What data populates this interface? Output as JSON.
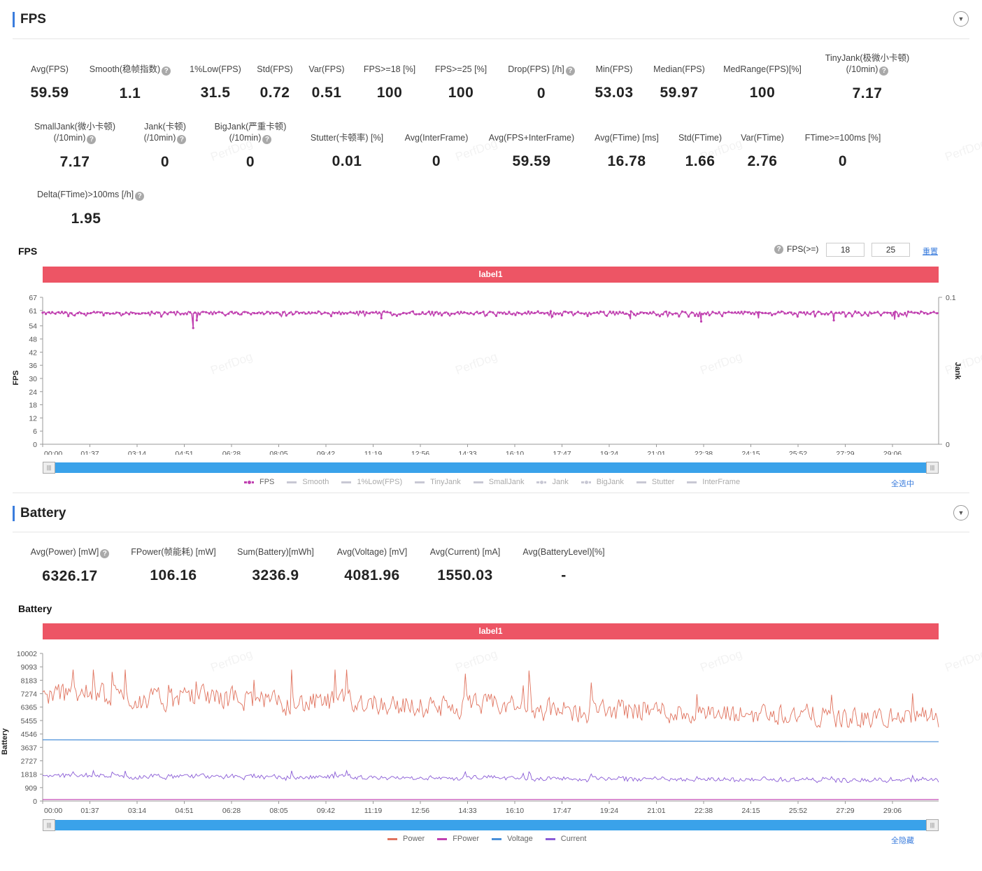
{
  "fps_section": {
    "title": "FPS",
    "metrics_row1": [
      {
        "label": "Avg(FPS)",
        "value": "59.59",
        "help": false
      },
      {
        "label": "Smooth(稳帧指数)",
        "value": "1.1",
        "help": true
      },
      {
        "label": "1%Low(FPS)",
        "value": "31.5",
        "help": false
      },
      {
        "label": "Std(FPS)",
        "value": "0.72",
        "help": false
      },
      {
        "label": "Var(FPS)",
        "value": "0.51",
        "help": false
      },
      {
        "label": "FPS>=18 [%]",
        "value": "100",
        "help": false
      },
      {
        "label": "FPS>=25 [%]",
        "value": "100",
        "help": false
      },
      {
        "label": "Drop(FPS) [/h]",
        "value": "0",
        "help": true
      },
      {
        "label": "Min(FPS)",
        "value": "53.03",
        "help": false
      },
      {
        "label": "Median(FPS)",
        "value": "59.97",
        "help": false
      },
      {
        "label": "MedRange(FPS)[%]",
        "value": "100",
        "help": false
      },
      {
        "label": "TinyJank(极微小卡顿)",
        "label2": "(/10min)",
        "value": "7.17",
        "help": true
      }
    ],
    "metrics_row2": [
      {
        "label": "SmallJank(微小卡顿)",
        "label2": "(/10min)",
        "value": "7.17",
        "help": true
      },
      {
        "label": "Jank(卡顿)",
        "label2": "(/10min)",
        "value": "0",
        "help": true
      },
      {
        "label": "BigJank(严重卡顿)",
        "label2": "(/10min)",
        "value": "0",
        "help": true
      },
      {
        "label": "Stutter(卡顿率) [%]",
        "value": "0.01",
        "help": false
      },
      {
        "label": "Avg(InterFrame)",
        "value": "0",
        "help": false
      },
      {
        "label": "Avg(FPS+InterFrame)",
        "value": "59.59",
        "help": false
      },
      {
        "label": "Avg(FTime) [ms]",
        "value": "16.78",
        "help": false
      },
      {
        "label": "Std(FTime)",
        "value": "1.66",
        "help": false
      },
      {
        "label": "Var(FTime)",
        "value": "2.76",
        "help": false
      },
      {
        "label": "FTime>=100ms [%]",
        "value": "0",
        "help": false
      }
    ],
    "metrics_row3": [
      {
        "label": "Delta(FTime)>100ms [/h]",
        "value": "1.95",
        "help": true
      }
    ]
  },
  "fps_chart_header": {
    "title": "FPS",
    "threshold_label": "FPS(>=)",
    "threshold_1": "18",
    "threshold_2": "25",
    "reset_label": "重置",
    "label_bar": "label1",
    "legend": [
      "FPS",
      "Smooth",
      "1%Low(FPS)",
      "TinyJank",
      "SmallJank",
      "Jank",
      "BigJank",
      "Stutter",
      "InterFrame"
    ],
    "select_all": "全选中",
    "y_title": "FPS",
    "y2_title": "Jank",
    "y2_ticks": [
      "0.1",
      "0"
    ]
  },
  "battery_section": {
    "title": "Battery",
    "metrics": [
      {
        "label": "Avg(Power) [mW]",
        "value": "6326.17",
        "help": true
      },
      {
        "label": "FPower(帧能耗) [mW]",
        "value": "106.16",
        "help": false
      },
      {
        "label": "Sum(Battery)[mWh]",
        "value": "3236.9",
        "help": false
      },
      {
        "label": "Avg(Voltage) [mV]",
        "value": "4081.96",
        "help": false
      },
      {
        "label": "Avg(Current) [mA]",
        "value": "1550.03",
        "help": false
      },
      {
        "label": "Avg(BatteryLevel)[%]",
        "value": "-",
        "help": false
      }
    ]
  },
  "battery_chart_header": {
    "title": "Battery",
    "label_bar": "label1",
    "legend": [
      "Power",
      "FPower",
      "Voltage",
      "Current"
    ],
    "hide_all": "全隐藏",
    "y_title": "Battery"
  },
  "watermark": "PerfDog",
  "colors": {
    "fps": "#c040b0",
    "power": "#e0735e",
    "fpower": "#c040b0",
    "voltage": "#4a90d9",
    "current": "#8a5cd6",
    "label_bar": "#ed5565",
    "accent": "#3b7ddd"
  },
  "chart_data": [
    {
      "type": "line",
      "title": "FPS",
      "ylabel": "FPS",
      "ylim": [
        0,
        67
      ],
      "yticks": [
        0,
        6,
        12,
        18,
        24,
        30,
        36,
        42,
        48,
        54,
        61,
        67
      ],
      "x_ticks": [
        "00:00",
        "01:37",
        "03:14",
        "04:51",
        "06:28",
        "08:05",
        "09:42",
        "11:19",
        "12:56",
        "14:33",
        "16:10",
        "17:47",
        "19:24",
        "21:01",
        "22:38",
        "24:15",
        "25:52",
        "27:29",
        "29:06"
      ],
      "duration_min": 30.3,
      "series": [
        {
          "name": "FPS",
          "mean": 59.59,
          "min": 53.03,
          "dips": [
            [
              0.172,
              56.5
            ],
            [
              0.168,
              53.0
            ],
            [
              0.378,
              57.5
            ],
            [
              0.568,
              57.8
            ],
            [
              0.656,
              57.0
            ],
            [
              0.735,
              56.0
            ],
            [
              0.799,
              57.4
            ],
            [
              0.862,
              57.8
            ],
            [
              0.883,
              56.5
            ],
            [
              0.951,
              56.8
            ]
          ]
        }
      ]
    },
    {
      "type": "line",
      "title": "Battery",
      "ylabel": "Battery",
      "ylim": [
        0,
        10002
      ],
      "yticks": [
        0,
        909,
        1818,
        2727,
        3637,
        4546,
        5455,
        6365,
        7274,
        8183,
        9093,
        10002
      ],
      "x_ticks": [
        "00:00",
        "01:37",
        "03:14",
        "04:51",
        "06:28",
        "08:05",
        "09:42",
        "11:19",
        "12:56",
        "14:33",
        "16:10",
        "17:47",
        "19:24",
        "21:01",
        "22:38",
        "24:15",
        "25:52",
        "27:29",
        "29:06"
      ],
      "series": [
        {
          "name": "Power",
          "mean": 6326.17,
          "start": 7200,
          "end": 5500,
          "max": 8900
        },
        {
          "name": "FPower",
          "mean": 106.16
        },
        {
          "name": "Voltage",
          "start": 4150,
          "end": 4020
        },
        {
          "name": "Current",
          "mean": 1550.03,
          "max": 2100
        }
      ]
    }
  ]
}
